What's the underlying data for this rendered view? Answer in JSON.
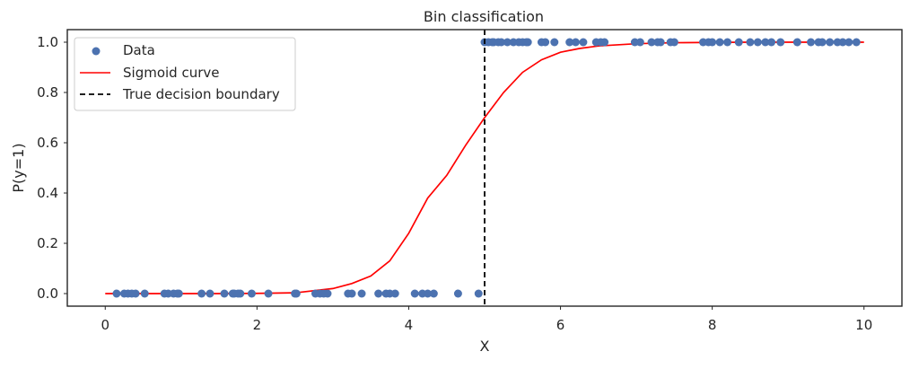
{
  "chart_data": {
    "type": "scatter",
    "title": "Bin classification",
    "xlabel": "X",
    "ylabel": "P(y=1)",
    "xlim": [
      -0.5,
      10.5
    ],
    "ylim": [
      -0.05,
      1.05
    ],
    "xticks": [
      0,
      2,
      4,
      6,
      8,
      10
    ],
    "yticks": [
      0.0,
      0.2,
      0.4,
      0.6,
      0.8,
      1.0
    ],
    "xtick_labels": [
      "0",
      "2",
      "4",
      "6",
      "8",
      "10"
    ],
    "ytick_labels": [
      "0.0",
      "0.2",
      "0.4",
      "0.6",
      "0.8",
      "1.0"
    ],
    "grid": false,
    "legend_position": "top-left",
    "series": [
      {
        "name": "Data",
        "kind": "scatter",
        "color": "#4c72b0",
        "points": [
          [
            0.15,
            0
          ],
          [
            0.25,
            0
          ],
          [
            0.3,
            0
          ],
          [
            0.35,
            0
          ],
          [
            0.4,
            0
          ],
          [
            0.52,
            0
          ],
          [
            0.78,
            0
          ],
          [
            0.83,
            0
          ],
          [
            0.9,
            0
          ],
          [
            0.95,
            0
          ],
          [
            0.97,
            0
          ],
          [
            1.27,
            0
          ],
          [
            1.38,
            0
          ],
          [
            1.57,
            0
          ],
          [
            1.68,
            0
          ],
          [
            1.7,
            0
          ],
          [
            1.75,
            0
          ],
          [
            1.78,
            0
          ],
          [
            1.93,
            0
          ],
          [
            2.15,
            0
          ],
          [
            2.5,
            0
          ],
          [
            2.52,
            0
          ],
          [
            2.77,
            0
          ],
          [
            2.83,
            0
          ],
          [
            2.88,
            0
          ],
          [
            2.93,
            0
          ],
          [
            3.2,
            0
          ],
          [
            3.25,
            0
          ],
          [
            3.38,
            0
          ],
          [
            3.6,
            0
          ],
          [
            3.7,
            0
          ],
          [
            3.75,
            0
          ],
          [
            3.82,
            0
          ],
          [
            4.08,
            0
          ],
          [
            4.18,
            0
          ],
          [
            4.25,
            0
          ],
          [
            4.33,
            0
          ],
          [
            4.65,
            0
          ],
          [
            4.92,
            0
          ],
          [
            5.0,
            1
          ],
          [
            5.05,
            1
          ],
          [
            5.1,
            1
          ],
          [
            5.12,
            1
          ],
          [
            5.18,
            1
          ],
          [
            5.22,
            1
          ],
          [
            5.3,
            1
          ],
          [
            5.38,
            1
          ],
          [
            5.45,
            1
          ],
          [
            5.5,
            1
          ],
          [
            5.55,
            1
          ],
          [
            5.57,
            1
          ],
          [
            5.75,
            1
          ],
          [
            5.8,
            1
          ],
          [
            5.92,
            1
          ],
          [
            6.12,
            1
          ],
          [
            6.2,
            1
          ],
          [
            6.3,
            1
          ],
          [
            6.47,
            1
          ],
          [
            6.53,
            1
          ],
          [
            6.58,
            1
          ],
          [
            6.98,
            1
          ],
          [
            7.05,
            1
          ],
          [
            7.2,
            1
          ],
          [
            7.28,
            1
          ],
          [
            7.32,
            1
          ],
          [
            7.45,
            1
          ],
          [
            7.5,
            1
          ],
          [
            7.88,
            1
          ],
          [
            7.95,
            1
          ],
          [
            8.0,
            1
          ],
          [
            8.1,
            1
          ],
          [
            8.2,
            1
          ],
          [
            8.35,
            1
          ],
          [
            8.5,
            1
          ],
          [
            8.6,
            1
          ],
          [
            8.7,
            1
          ],
          [
            8.78,
            1
          ],
          [
            8.9,
            1
          ],
          [
            9.12,
            1
          ],
          [
            9.3,
            1
          ],
          [
            9.4,
            1
          ],
          [
            9.45,
            1
          ],
          [
            9.55,
            1
          ],
          [
            9.65,
            1
          ],
          [
            9.72,
            1
          ],
          [
            9.8,
            1
          ],
          [
            9.9,
            1
          ]
        ]
      },
      {
        "name": "Sigmoid curve",
        "kind": "line",
        "color": "#ff0000",
        "x": [
          0.0,
          0.5,
          1.0,
          1.5,
          2.0,
          2.5,
          3.0,
          3.25,
          3.5,
          3.75,
          4.0,
          4.25,
          4.5,
          4.75,
          5.0,
          5.25,
          5.5,
          5.75,
          6.0,
          6.25,
          6.5,
          7.0,
          7.5,
          8.0,
          8.5,
          9.0,
          10.0
        ],
        "y": [
          0.0,
          0.0,
          0.0,
          0.0,
          0.001,
          0.003,
          0.02,
          0.04,
          0.07,
          0.13,
          0.24,
          0.38,
          0.47,
          0.59,
          0.7,
          0.8,
          0.88,
          0.93,
          0.96,
          0.975,
          0.985,
          0.994,
          0.998,
          0.999,
          1.0,
          1.0,
          1.0
        ]
      },
      {
        "name": "True decision boundary",
        "kind": "vline",
        "color": "#000000",
        "x": 5.0
      }
    ]
  }
}
